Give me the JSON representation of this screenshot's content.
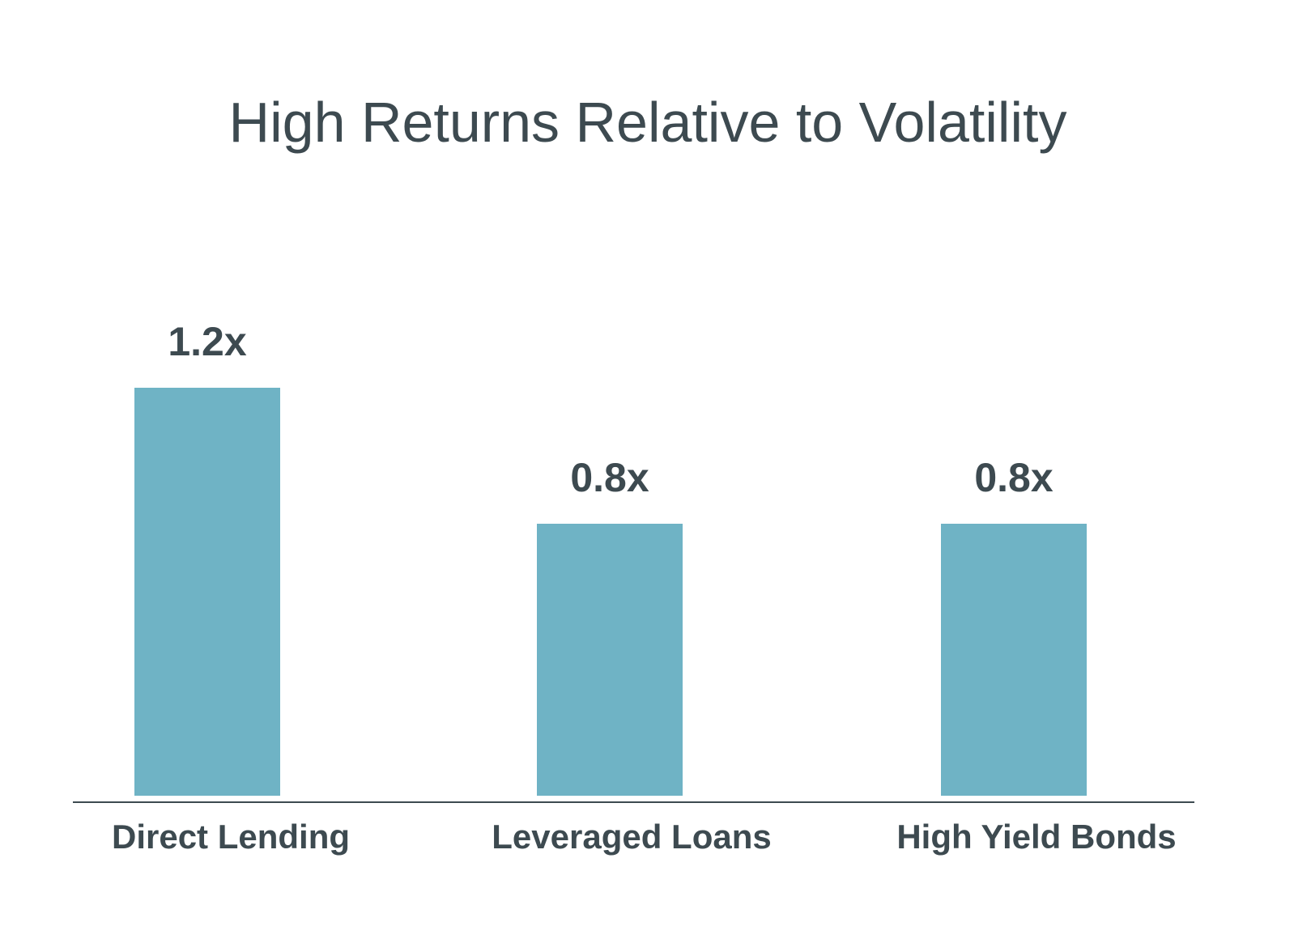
{
  "chart_data": {
    "type": "bar",
    "title": "High Returns Relative to Volatility",
    "categories": [
      "Direct Lending",
      "Leveraged Loans",
      "High Yield Bonds"
    ],
    "values": [
      1.2,
      0.8,
      0.8
    ],
    "value_labels": [
      "1.2x",
      "0.8x",
      "0.8x"
    ],
    "xlabel": "",
    "ylabel": "",
    "ylim": [
      0,
      1.2
    ],
    "grid": false,
    "legend": "none",
    "bar_color": "#6fb3c5",
    "axis_color": "#3d4a50",
    "text_color": "#3d4a50"
  }
}
